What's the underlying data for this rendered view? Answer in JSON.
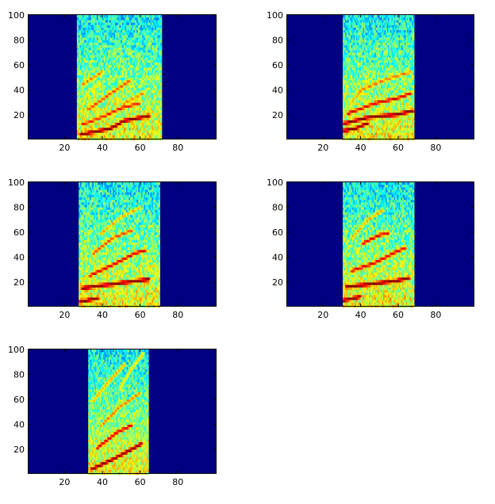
{
  "figure": {
    "background": "#ffffff",
    "colormap": "jet"
  },
  "chart_data": [
    {
      "type": "heatmap",
      "title": "",
      "xlabel": "",
      "ylabel": "",
      "xlim": [
        1,
        100
      ],
      "ylim": [
        1,
        100
      ],
      "xticks": [
        20,
        40,
        60,
        80
      ],
      "yticks": [
        20,
        40,
        60,
        80,
        100
      ],
      "active_x_range": [
        27,
        72
      ],
      "ridges": [
        {
          "x": [
            29,
            45,
            52,
            65
          ],
          "y": [
            5,
            10,
            16,
            20
          ],
          "level": 1.0
        },
        {
          "x": [
            30,
            42,
            50,
            60
          ],
          "y": [
            13,
            20,
            26,
            30
          ],
          "level": 0.85
        },
        {
          "x": [
            33,
            45,
            55
          ],
          "y": [
            25,
            38,
            48
          ],
          "level": 0.8
        },
        {
          "x": [
            30,
            40
          ],
          "y": [
            45,
            55
          ],
          "level": 0.75
        },
        {
          "x": [
            52,
            62
          ],
          "y": [
            30,
            38
          ],
          "level": 0.75
        }
      ]
    },
    {
      "type": "heatmap",
      "title": "",
      "xlabel": "",
      "ylabel": "",
      "xlim": [
        1,
        100
      ],
      "ylim": [
        1,
        100
      ],
      "xticks": [
        20,
        40,
        60,
        80
      ],
      "yticks": [
        20,
        40,
        60,
        80,
        100
      ],
      "active_x_range": [
        31,
        69
      ],
      "ridges": [
        {
          "x": [
            31,
            38,
            44
          ],
          "y": [
            8,
            10,
            14
          ],
          "level": 1.0
        },
        {
          "x": [
            32,
            45,
            60,
            68
          ],
          "y": [
            14,
            19,
            21,
            24
          ],
          "level": 1.0
        },
        {
          "x": [
            34,
            48,
            60,
            67
          ],
          "y": [
            22,
            30,
            34,
            38
          ],
          "level": 0.9
        },
        {
          "x": [
            40,
            52,
            60,
            67
          ],
          "y": [
            40,
            48,
            52,
            55
          ],
          "level": 0.75
        },
        {
          "x": [
            35,
            44
          ],
          "y": [
            30,
            45
          ],
          "level": 0.7
        }
      ]
    },
    {
      "type": "heatmap",
      "title": "",
      "xlabel": "",
      "ylabel": "",
      "xlim": [
        1,
        100
      ],
      "ylim": [
        1,
        100
      ],
      "xticks": [
        20,
        40,
        60,
        80
      ],
      "yticks": [
        20,
        40,
        60,
        80,
        100
      ],
      "active_x_range": [
        28,
        71
      ],
      "ridges": [
        {
          "x": [
            29,
            38
          ],
          "y": [
            5,
            8
          ],
          "level": 1.0
        },
        {
          "x": [
            30,
            45,
            60,
            65
          ],
          "y": [
            16,
            19,
            22,
            23
          ],
          "level": 1.0
        },
        {
          "x": [
            34,
            48,
            58,
            63
          ],
          "y": [
            26,
            36,
            44,
            46
          ],
          "level": 0.9
        },
        {
          "x": [
            36,
            46,
            56
          ],
          "y": [
            44,
            56,
            62
          ],
          "level": 0.8
        },
        {
          "x": [
            40,
            50,
            60
          ],
          "y": [
            60,
            72,
            80
          ],
          "level": 0.7
        }
      ]
    },
    {
      "type": "heatmap",
      "title": "",
      "xlabel": "",
      "ylabel": "",
      "xlim": [
        1,
        100
      ],
      "ylim": [
        1,
        100
      ],
      "xticks": [
        20,
        40,
        60,
        80
      ],
      "yticks": [
        20,
        40,
        60,
        80,
        100
      ],
      "active_x_range": [
        31,
        69
      ],
      "ridges": [
        {
          "x": [
            31,
            37,
            40
          ],
          "y": [
            6,
            8,
            9
          ],
          "level": 1.0
        },
        {
          "x": [
            33,
            45,
            60,
            66
          ],
          "y": [
            17,
            19,
            22,
            24
          ],
          "level": 1.0
        },
        {
          "x": [
            36,
            48,
            58,
            64
          ],
          "y": [
            30,
            36,
            44,
            48
          ],
          "level": 0.9
        },
        {
          "x": [
            42,
            50,
            55
          ],
          "y": [
            52,
            58,
            60
          ],
          "level": 0.9
        },
        {
          "x": [
            36,
            44,
            52
          ],
          "y": [
            56,
            70,
            78
          ],
          "level": 0.7
        }
      ]
    },
    {
      "type": "heatmap",
      "title": "",
      "xlabel": "",
      "ylabel": "",
      "xlim": [
        1,
        100
      ],
      "ylim": [
        1,
        100
      ],
      "xticks": [
        20,
        40,
        60,
        80
      ],
      "yticks": [
        20,
        40,
        60,
        80,
        100
      ],
      "active_x_range": [
        33,
        65
      ],
      "ridges": [
        {
          "x": [
            35,
            45,
            55,
            61
          ],
          "y": [
            5,
            12,
            20,
            25
          ],
          "level": 1.0
        },
        {
          "x": [
            38,
            48,
            56
          ],
          "y": [
            22,
            34,
            40
          ],
          "level": 0.9
        },
        {
          "x": [
            40,
            50,
            60
          ],
          "y": [
            40,
            55,
            65
          ],
          "level": 0.75
        },
        {
          "x": [
            36,
            44,
            52
          ],
          "y": [
            60,
            75,
            88
          ],
          "level": 0.7
        },
        {
          "x": [
            50,
            56,
            62
          ],
          "y": [
            70,
            85,
            97
          ],
          "level": 0.65
        }
      ]
    }
  ]
}
